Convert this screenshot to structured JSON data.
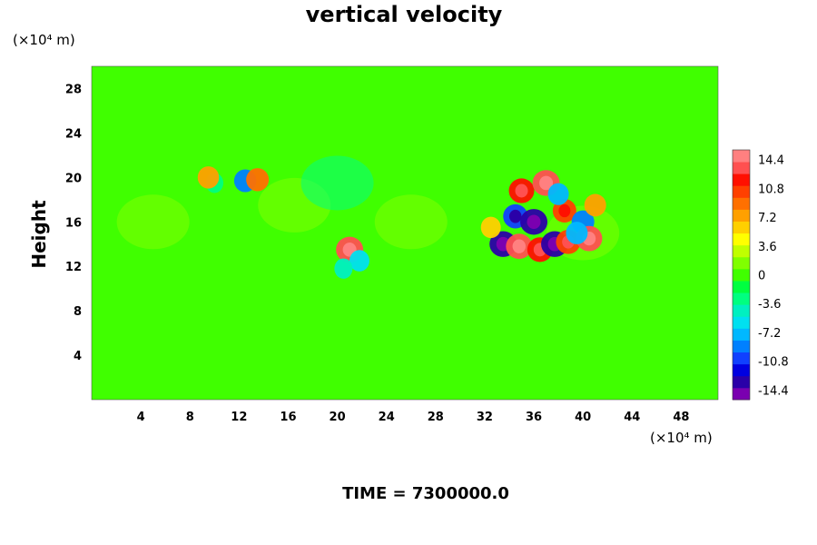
{
  "chart_data": {
    "type": "heatmap",
    "title": "vertical velocity",
    "ylabel": "Height",
    "xlabel": "",
    "x_unit_label": "(×10⁴ m)",
    "y_unit_label": "(×10⁴ m)",
    "footer": "TIME = 7300000.0",
    "xlim": [
      0,
      51
    ],
    "ylim": [
      0,
      30
    ],
    "x_ticks": [
      "4",
      "8",
      "12",
      "16",
      "20",
      "24",
      "28",
      "32",
      "36",
      "40",
      "44",
      "48"
    ],
    "y_ticks": [
      "4",
      "8",
      "12",
      "16",
      "20",
      "24",
      "28"
    ],
    "colorbar": {
      "range": [
        -15.6,
        15.6
      ],
      "tick_labels": [
        "14.4",
        "10.8",
        "7.2",
        "3.6",
        "0",
        "-3.6",
        "-7.2",
        "-10.8",
        "-14.4"
      ],
      "colors": [
        "#7a00b0",
        "#2a00a8",
        "#0000e0",
        "#1040ff",
        "#0080ff",
        "#00b8ff",
        "#00e0f0",
        "#00f0c0",
        "#00ff80",
        "#00ff40",
        "#40ff00",
        "#80ff00",
        "#c0ff00",
        "#ffff00",
        "#ffd000",
        "#ffa000",
        "#ff7000",
        "#ff4000",
        "#ff1000",
        "#ff5050",
        "#ff8080"
      ]
    },
    "background_value": -0.6,
    "features": [
      {
        "x": 16.5,
        "y": 17.5,
        "value": 1.2
      },
      {
        "x": 5,
        "y": 16,
        "value": 1.8
      },
      {
        "x": 26,
        "y": 16,
        "value": 0.9
      },
      {
        "x": 40,
        "y": 15,
        "value": 1.2
      },
      {
        "x": 10,
        "y": 19.5,
        "value": -3.5
      },
      {
        "x": 20,
        "y": 19.5,
        "value": -2.8
      },
      {
        "x": 9.5,
        "y": 20,
        "value": 7.5
      },
      {
        "x": 12.5,
        "y": 19.7,
        "value": -8.5
      },
      {
        "x": 13.5,
        "y": 19.8,
        "value": 9
      },
      {
        "x": 21,
        "y": 13.5,
        "value": 14
      },
      {
        "x": 21.8,
        "y": 12.5,
        "value": -6
      },
      {
        "x": 20.5,
        "y": 11.8,
        "value": -4
      },
      {
        "x": 35,
        "y": 18.8,
        "value": 12
      },
      {
        "x": 37,
        "y": 19.5,
        "value": 14
      },
      {
        "x": 34.5,
        "y": 16.5,
        "value": -11
      },
      {
        "x": 36,
        "y": 16,
        "value": -14
      },
      {
        "x": 38.5,
        "y": 17,
        "value": 10
      },
      {
        "x": 40,
        "y": 16,
        "value": -9
      },
      {
        "x": 41,
        "y": 17.5,
        "value": 8
      },
      {
        "x": 33.5,
        "y": 14,
        "value": -14
      },
      {
        "x": 34.8,
        "y": 13.8,
        "value": 13
      },
      {
        "x": 36.5,
        "y": 13.5,
        "value": 12
      },
      {
        "x": 37.7,
        "y": 14,
        "value": -14
      },
      {
        "x": 38.8,
        "y": 14.2,
        "value": 11
      },
      {
        "x": 40.5,
        "y": 14.5,
        "value": 13
      },
      {
        "x": 39.5,
        "y": 15,
        "value": -8
      },
      {
        "x": 32.5,
        "y": 15.5,
        "value": 6
      },
      {
        "x": 38,
        "y": 18.5,
        "value": -7
      }
    ]
  }
}
